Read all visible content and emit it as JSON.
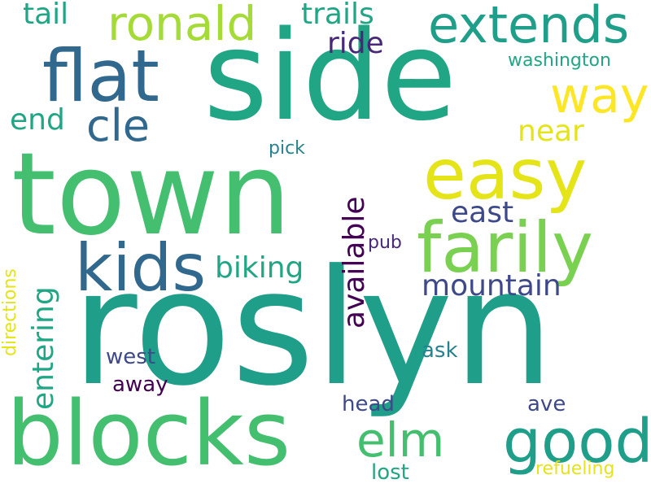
{
  "words": {
    "roslyn": "roslyn",
    "town": "town",
    "side": "side",
    "blocks": "blocks",
    "flat": "flat",
    "easy": "easy",
    "farily": "farily",
    "kids": "kids",
    "extends": "extends",
    "ronald": "ronald",
    "good": "good",
    "elm": "elm",
    "way": "way",
    "cle": "cle",
    "mountain": "mountain",
    "biking": "biking",
    "trails": "trails",
    "tail": "tail",
    "ride": "ride",
    "end": "end",
    "near": "near",
    "east": "east",
    "washington": "washington",
    "pick": "pick",
    "pub": "pub",
    "west": "west",
    "away": "away",
    "ask": "ask",
    "head": "head",
    "ave": "ave",
    "lost": "lost",
    "refueling": "refueling",
    "available": "available",
    "entering": "entering",
    "directions": "directions"
  },
  "palette": {
    "background": "#ffffff",
    "green": "#44bf70",
    "teal": "#21a685",
    "blue": "#31688e",
    "purple": "#482878",
    "lime": "#7ad151",
    "yellow": "#e4e419"
  }
}
